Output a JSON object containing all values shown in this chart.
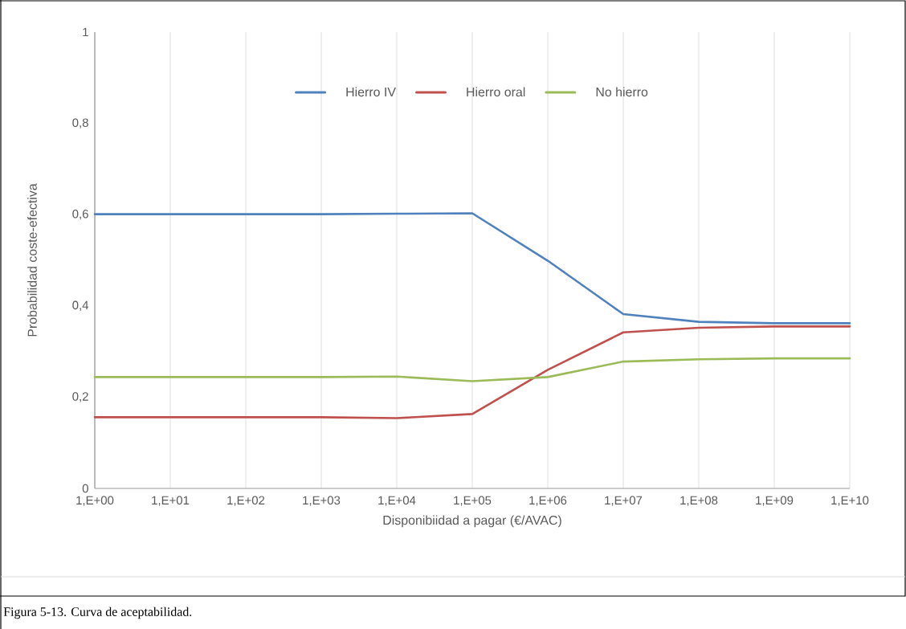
{
  "chart_data": {
    "type": "line",
    "xlabel": "Disponibiidad a pagar (€/AVAC)",
    "ylabel": "Probabilidad coste-efectiva",
    "categories": [
      "1,E+00",
      "1,E+01",
      "1,E+02",
      "1,E+03",
      "1,E+04",
      "1,E+05",
      "1,E+06",
      "1,E+07",
      "1,E+08",
      "1,E+09",
      "1,E+10"
    ],
    "series": [
      {
        "name": "Hierro IV",
        "color": "#4f81bd",
        "values": [
          0.601,
          0.601,
          0.601,
          0.601,
          0.602,
          0.603,
          0.499,
          0.382,
          0.365,
          0.362,
          0.362
        ]
      },
      {
        "name": "Hierro oral",
        "color": "#c0504d",
        "values": [
          0.156,
          0.156,
          0.156,
          0.156,
          0.154,
          0.163,
          0.26,
          0.342,
          0.352,
          0.355,
          0.355
        ]
      },
      {
        "name": "No hierro",
        "color": "#9bbb59",
        "values": [
          0.244,
          0.244,
          0.244,
          0.244,
          0.245,
          0.235,
          0.244,
          0.278,
          0.283,
          0.285,
          0.285
        ]
      }
    ],
    "ylim": [
      0,
      1
    ],
    "yticks": [
      0,
      {
        "value": 0.2,
        "label": "0,2"
      },
      {
        "value": 0.4,
        "label": "0,4"
      },
      {
        "value": 0.6,
        "label": "0,6"
      },
      {
        "value": 0.8,
        "label": "0,8"
      },
      1
    ],
    "grid": "x",
    "legend": "top",
    "annotations": [
      "Figura 5-13. Curva de aceptabilidad."
    ]
  }
}
